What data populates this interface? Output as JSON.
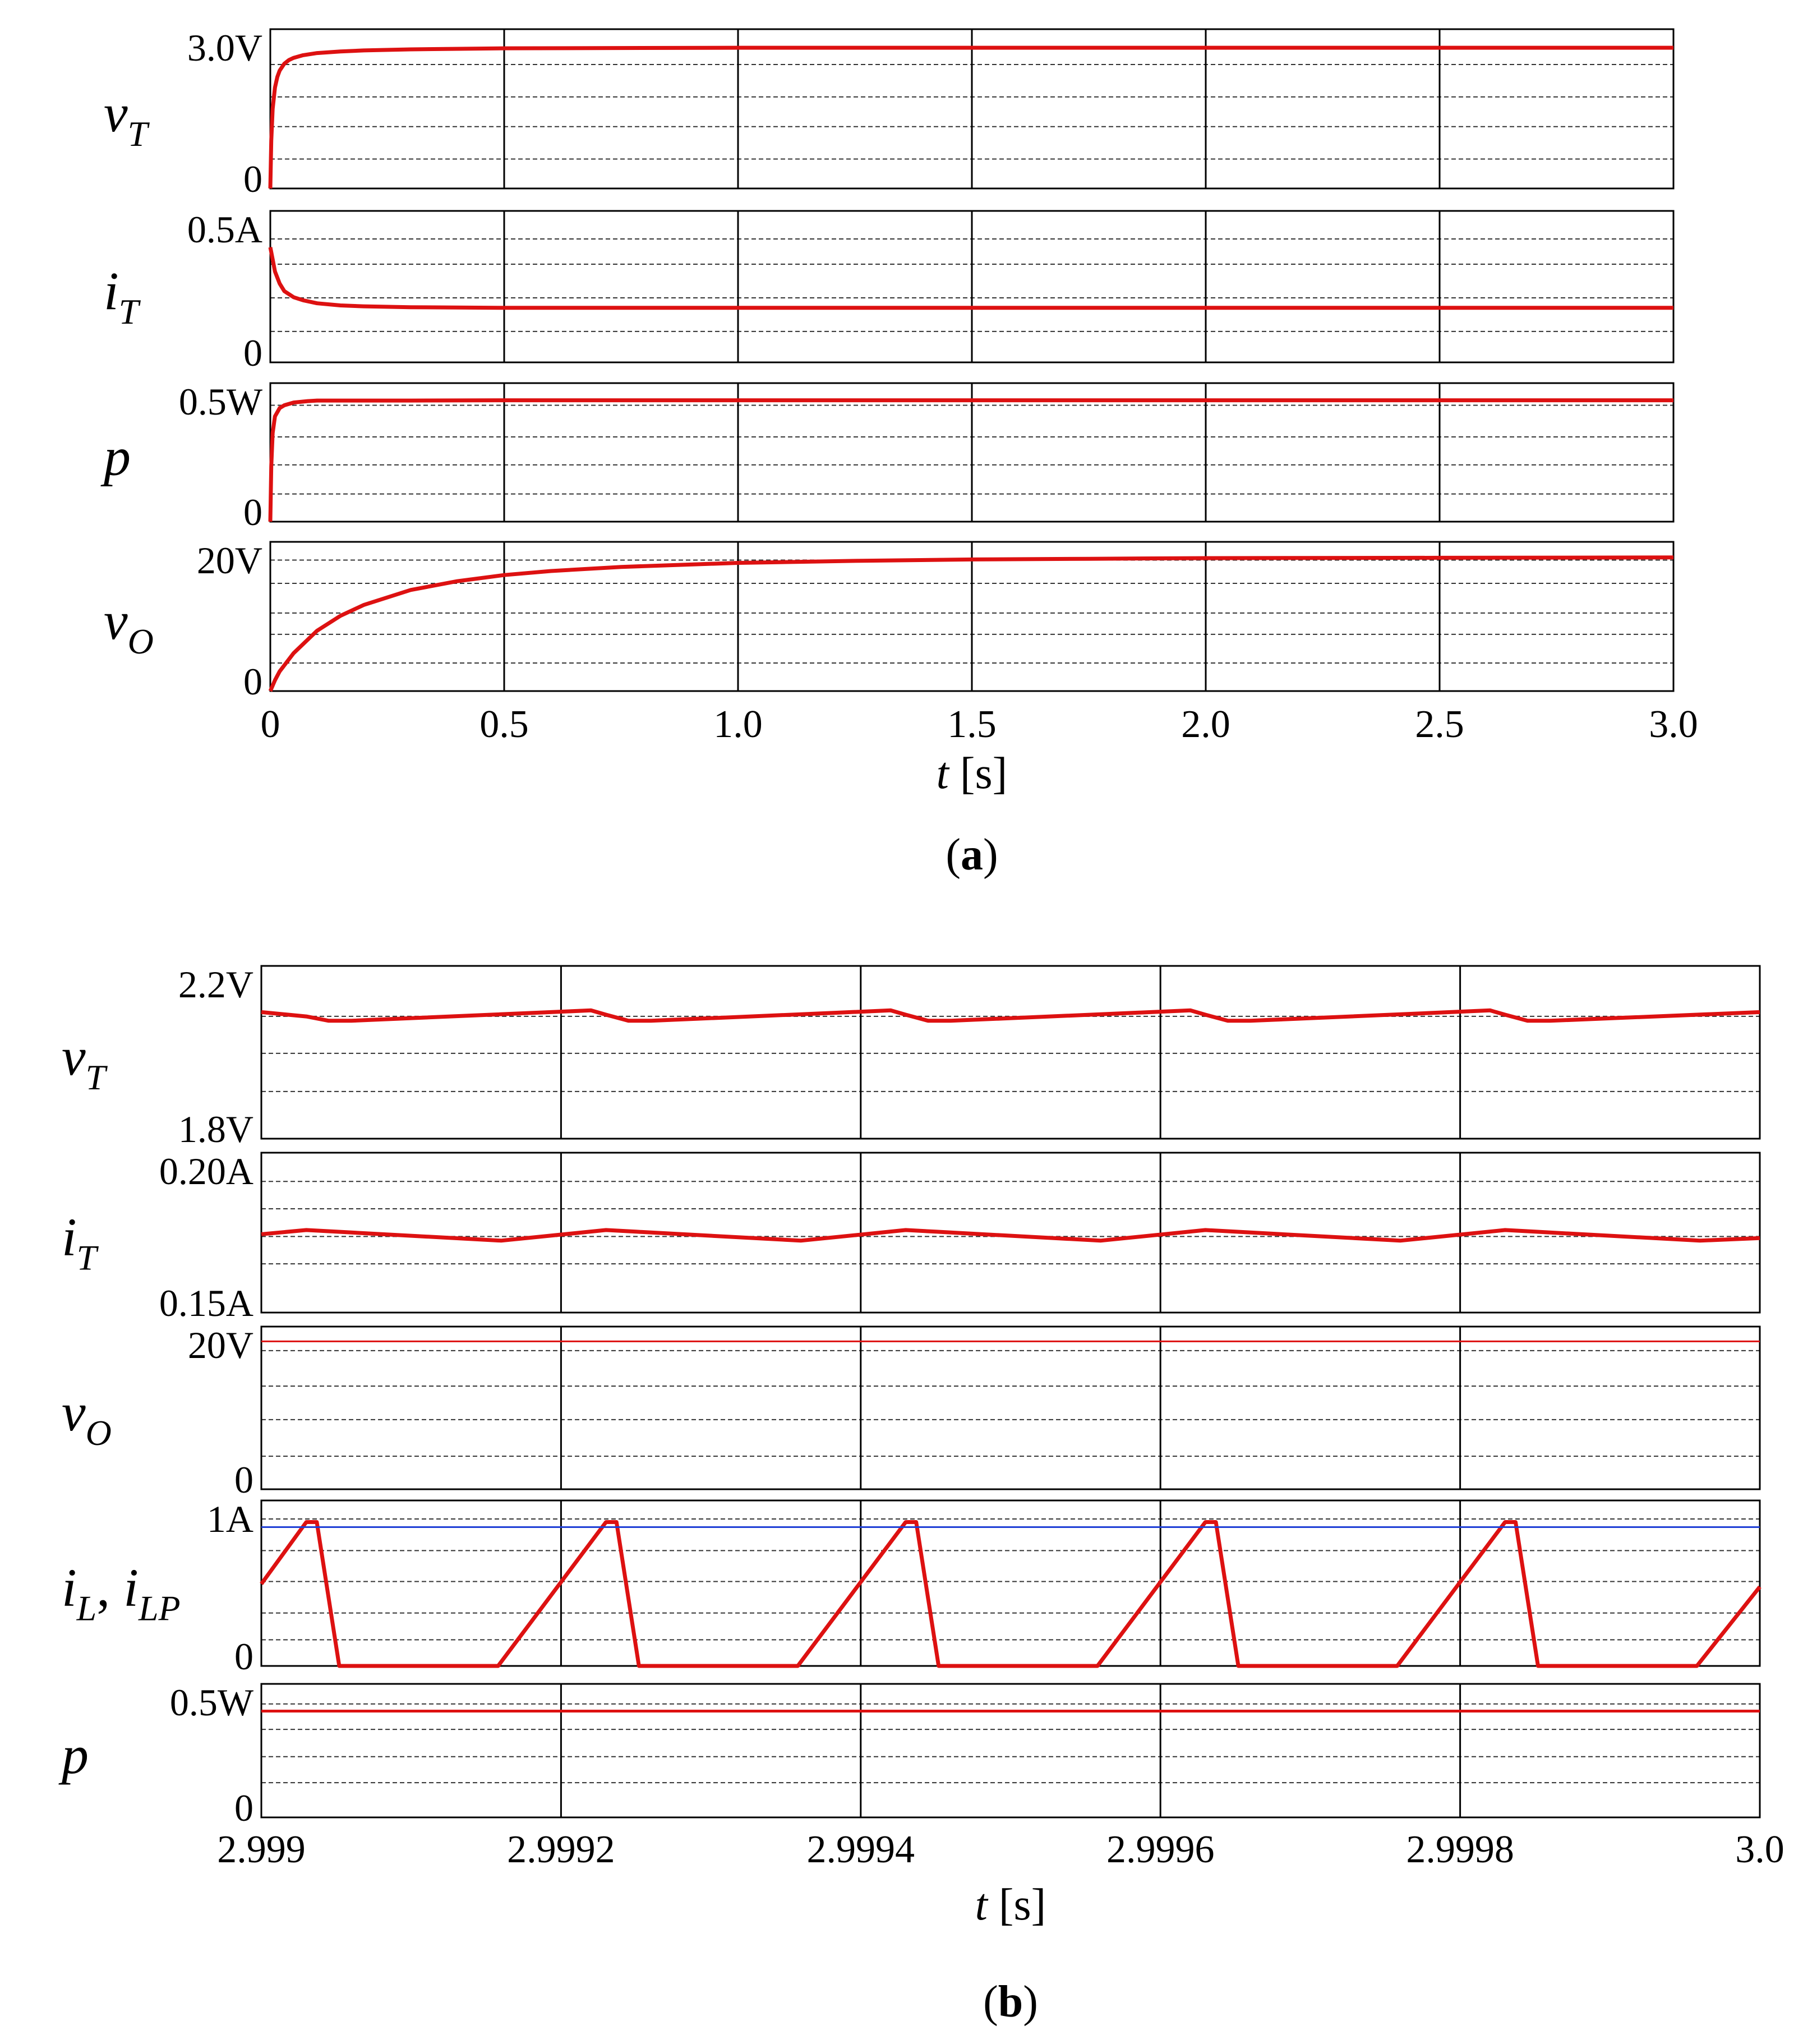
{
  "chart_data": [
    {
      "type": "line",
      "caption": "a",
      "xlabel_var": "t",
      "xlabel_unit": "[s]",
      "xlim": [
        0,
        3.0
      ],
      "x_ticks": [
        "0",
        "0.5",
        "1.0",
        "1.5",
        "2.0",
        "2.5",
        "3.0"
      ],
      "x_tick_values": [
        0,
        0.5,
        1.0,
        1.5,
        2.0,
        2.5,
        3.0
      ],
      "grid": true,
      "panels": [
        {
          "ylabel": "v",
          "ylabel_sub": "T",
          "y_top_label": "3.0V",
          "y_bottom_label": "0",
          "ylim": [
            0,
            3.0
          ],
          "series": [
            {
              "color": "#dd1111",
              "x": [
                0,
                0.002,
                0.005,
                0.01,
                0.015,
                0.02,
                0.03,
                0.04,
                0.05,
                0.07,
                0.1,
                0.15,
                0.2,
                0.3,
                0.5,
                1.0,
                1.5,
                2.0,
                2.5,
                3.0
              ],
              "y": [
                0,
                0.9,
                1.5,
                1.9,
                2.1,
                2.22,
                2.35,
                2.42,
                2.46,
                2.51,
                2.55,
                2.58,
                2.6,
                2.62,
                2.64,
                2.65,
                2.65,
                2.65,
                2.65,
                2.65
              ]
            }
          ]
        },
        {
          "ylabel": "i",
          "ylabel_sub": "T",
          "y_top_label": "0.5A",
          "y_bottom_label": "0",
          "ylim": [
            0,
            0.5
          ],
          "series": [
            {
              "color": "#dd1111",
              "x": [
                0,
                0.005,
                0.01,
                0.02,
                0.03,
                0.05,
                0.07,
                0.1,
                0.15,
                0.2,
                0.3,
                0.5,
                1.0,
                2.0,
                3.0
              ],
              "y": [
                0.38,
                0.34,
                0.3,
                0.26,
                0.235,
                0.215,
                0.205,
                0.195,
                0.188,
                0.185,
                0.182,
                0.18,
                0.18,
                0.18,
                0.18
              ]
            }
          ]
        },
        {
          "ylabel": "p",
          "ylabel_sub": "",
          "y_top_label": "0.5W",
          "y_bottom_label": "0",
          "ylim": [
            0,
            0.5
          ],
          "series": [
            {
              "color": "#dd1111",
              "x": [
                0,
                0.002,
                0.005,
                0.01,
                0.02,
                0.03,
                0.05,
                0.08,
                0.1,
                0.2,
                0.3,
                0.5,
                1.0,
                2.0,
                3.0
              ],
              "y": [
                0,
                0.2,
                0.32,
                0.38,
                0.41,
                0.42,
                0.43,
                0.435,
                0.437,
                0.437,
                0.437,
                0.438,
                0.438,
                0.438,
                0.438
              ]
            }
          ]
        },
        {
          "ylabel": "v",
          "ylabel_sub": "O",
          "y_top_label": "20V",
          "y_bottom_label": "0",
          "ylim": [
            0,
            22
          ],
          "series": [
            {
              "color": "#dd1111",
              "x": [
                0,
                0.01,
                0.02,
                0.05,
                0.1,
                0.15,
                0.2,
                0.3,
                0.4,
                0.5,
                0.6,
                0.75,
                1.0,
                1.25,
                1.5,
                1.75,
                2.0,
                2.5,
                3.0
              ],
              "y": [
                0,
                1.6,
                2.9,
                5.6,
                8.9,
                11.1,
                12.7,
                14.9,
                16.2,
                17.1,
                17.7,
                18.3,
                18.9,
                19.2,
                19.4,
                19.5,
                19.6,
                19.65,
                19.7
              ]
            }
          ]
        }
      ]
    },
    {
      "type": "line",
      "caption": "b",
      "xlabel_var": "t",
      "xlabel_unit": "[s]",
      "xlim": [
        2.999,
        3.0
      ],
      "x_ticks": [
        "2.999",
        "2.9992",
        "2.9994",
        "2.9996",
        "2.9998",
        "3.0"
      ],
      "x_tick_values": [
        2.999,
        2.9992,
        2.9994,
        2.9996,
        2.9998,
        3.0
      ],
      "grid": true,
      "panels": [
        {
          "ylabel": "v",
          "ylabel_sub": "T",
          "y_top_label": "2.2V",
          "y_bottom_label": "1.8V",
          "ylim": [
            1.8,
            2.2
          ],
          "series": [
            {
              "color": "#dd1111",
              "x": [
                2.999,
                2.99903,
                2.999045,
                2.99906,
                2.99922,
                2.99923,
                2.999245,
                2.99926,
                2.99942,
                2.99943,
                2.999445,
                2.99946,
                2.99962,
                2.99963,
                2.999645,
                2.99966,
                2.99982,
                2.99983,
                2.999845,
                2.99986,
                3.0
              ],
              "y": [
                2.093,
                2.083,
                2.073,
                2.073,
                2.097,
                2.087,
                2.073,
                2.073,
                2.097,
                2.087,
                2.073,
                2.073,
                2.097,
                2.087,
                2.073,
                2.073,
                2.097,
                2.087,
                2.073,
                2.073,
                2.093
              ]
            }
          ]
        },
        {
          "ylabel": "i",
          "ylabel_sub": "T",
          "y_top_label": "0.20A",
          "y_bottom_label": "0.15A",
          "ylim": [
            0.15,
            0.2
          ],
          "series": [
            {
              "color": "#dd1111",
              "x": [
                2.999,
                2.99903,
                2.99905,
                2.99916,
                2.99923,
                2.99925,
                2.99936,
                2.99943,
                2.99945,
                2.99956,
                2.99963,
                2.99965,
                2.99976,
                2.99983,
                2.99985,
                2.99996,
                3.0
              ],
              "y": [
                0.1745,
                0.1758,
                0.1753,
                0.1725,
                0.1758,
                0.1753,
                0.1725,
                0.1758,
                0.1753,
                0.1725,
                0.1758,
                0.1753,
                0.1725,
                0.1758,
                0.1753,
                0.1725,
                0.1733
              ]
            }
          ]
        },
        {
          "ylabel": "v",
          "ylabel_sub": "O",
          "y_top_label": "20V",
          "y_bottom_label": "0",
          "ylim": [
            0,
            22
          ],
          "series": [
            {
              "color": "#dd1111",
              "x": [
                2.999,
                3.0
              ],
              "y": [
                20.0,
                20.0
              ]
            }
          ]
        },
        {
          "ylabel": "i",
          "ylabel_sub": "L",
          "ylabel_extra": ", ",
          "ylabel2": "i",
          "ylabel2_sub": "LP",
          "y_top_label": "1A",
          "y_bottom_label": "0",
          "ylim": [
            0,
            1.15
          ],
          "series": [
            {
              "color": "#dd1111",
              "x": [
                2.999,
                2.99903,
                2.999037,
                2.999052,
                2.999158,
                2.99923,
                2.999237,
                2.999252,
                2.999358,
                2.99943,
                2.999437,
                2.999452,
                2.999558,
                2.99963,
                2.999637,
                2.999652,
                2.999758,
                2.99983,
                2.999837,
                2.999852,
                2.999958,
                3.0
              ],
              "y": [
                0.57,
                1.0,
                1.0,
                0.0,
                0.0,
                1.0,
                1.0,
                0.0,
                0.0,
                1.0,
                1.0,
                0.0,
                0.0,
                1.0,
                1.0,
                0.0,
                0.0,
                1.0,
                1.0,
                0.0,
                0.0,
                0.55
              ]
            },
            {
              "color": "#1f3fd6",
              "x": [
                2.999,
                3.0
              ],
              "y": [
                0.965,
                0.965
              ]
            }
          ]
        },
        {
          "ylabel": "p",
          "ylabel_sub": "",
          "y_top_label": "0.5W",
          "y_bottom_label": "0",
          "ylim": [
            0,
            0.55
          ],
          "series": [
            {
              "color": "#dd1111",
              "x": [
                2.999,
                3.0
              ],
              "y": [
                0.438,
                0.438
              ]
            }
          ]
        }
      ]
    }
  ]
}
